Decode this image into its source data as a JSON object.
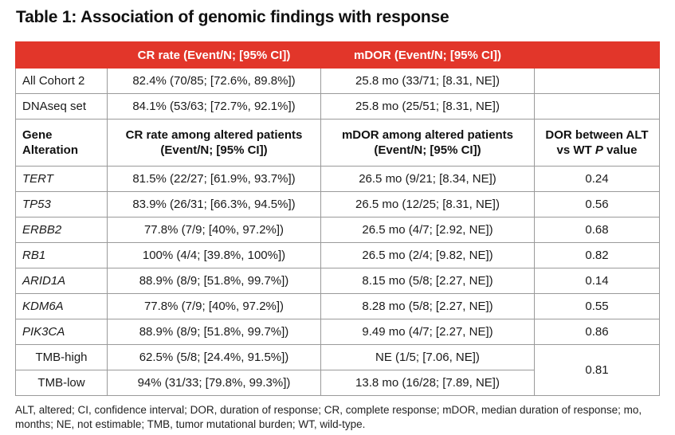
{
  "title": "Table 1: Association of genomic findings with response",
  "header": {
    "col1": "",
    "col2": "CR rate (Event/N; [95% CI])",
    "col3": "mDOR (Event/N; [95% CI])",
    "col4": ""
  },
  "summary_rows": [
    {
      "label": "All Cohort 2",
      "cr": "82.4% (70/85; [72.6%, 89.8%])",
      "mdor": "25.8 mo (33/71; [8.31, NE])"
    },
    {
      "label": "DNAseq set",
      "cr": "84.1% (53/63; [72.7%, 92.1%])",
      "mdor": "25.8 mo (25/51; [8.31, NE])"
    }
  ],
  "subheader": {
    "col1_line1": "Gene",
    "col1_line2": "Alteration",
    "col2_line1": "CR rate among altered patients",
    "col2_line2": "(Event/N; [95% CI])",
    "col3_line1": "mDOR among altered patients",
    "col3_line2": "(Event/N; [95% CI])",
    "col4_line1": "DOR between ALT",
    "col4_line2_pre": "vs WT ",
    "col4_line2_p": "P",
    "col4_line2_post": " value"
  },
  "gene_rows": [
    {
      "gene": "TERT",
      "cr": "81.5% (22/27; [61.9%, 93.7%])",
      "mdor": "26.5 mo (9/21; [8.34, NE])",
      "p": "0.24"
    },
    {
      "gene": "TP53",
      "cr": "83.9% (26/31; [66.3%, 94.5%])",
      "mdor": "26.5 mo (12/25; [8.31, NE])",
      "p": "0.56"
    },
    {
      "gene": "ERBB2",
      "cr": "77.8% (7/9; [40%, 97.2%])",
      "mdor": "26.5 mo (4/7; [2.92, NE])",
      "p": "0.68"
    },
    {
      "gene": "RB1",
      "cr": "100% (4/4; [39.8%, 100%])",
      "mdor": "26.5 mo (2/4; [9.82, NE])",
      "p": "0.82"
    },
    {
      "gene": "ARID1A",
      "cr": "88.9% (8/9; [51.8%, 99.7%])",
      "mdor": "8.15 mo (5/8; [2.27, NE])",
      "p": "0.14"
    },
    {
      "gene": "KDM6A",
      "cr": "77.8% (7/9; [40%, 97.2%])",
      "mdor": "8.28 mo (5/8; [2.27, NE])",
      "p": "0.55"
    },
    {
      "gene": "PIK3CA",
      "cr": "88.9% (8/9; [51.8%, 99.7%])",
      "mdor": "9.49 mo (4/7; [2.27, NE])",
      "p": "0.86"
    }
  ],
  "tmb_rows": [
    {
      "label": "TMB-high",
      "cr": "62.5% (5/8; [24.4%, 91.5%])",
      "mdor": "NE (1/5; [7.06, NE])"
    },
    {
      "label": "TMB-low",
      "cr": "94% (31/33; [79.8%, 99.3%])",
      "mdor": "13.8 mo (16/28; [7.89, NE])"
    }
  ],
  "tmb_p": "0.81",
  "footnote": "ALT, altered; CI, confidence interval; DOR, duration of response; CR, complete response; mDOR, median duration of response; mo, months; NE, not estimable; TMB, tumor mutational burden; WT, wild-type.",
  "colors": {
    "header_bg": "#e2362a",
    "header_text": "#ffffff",
    "border": "#9a9a9a"
  }
}
